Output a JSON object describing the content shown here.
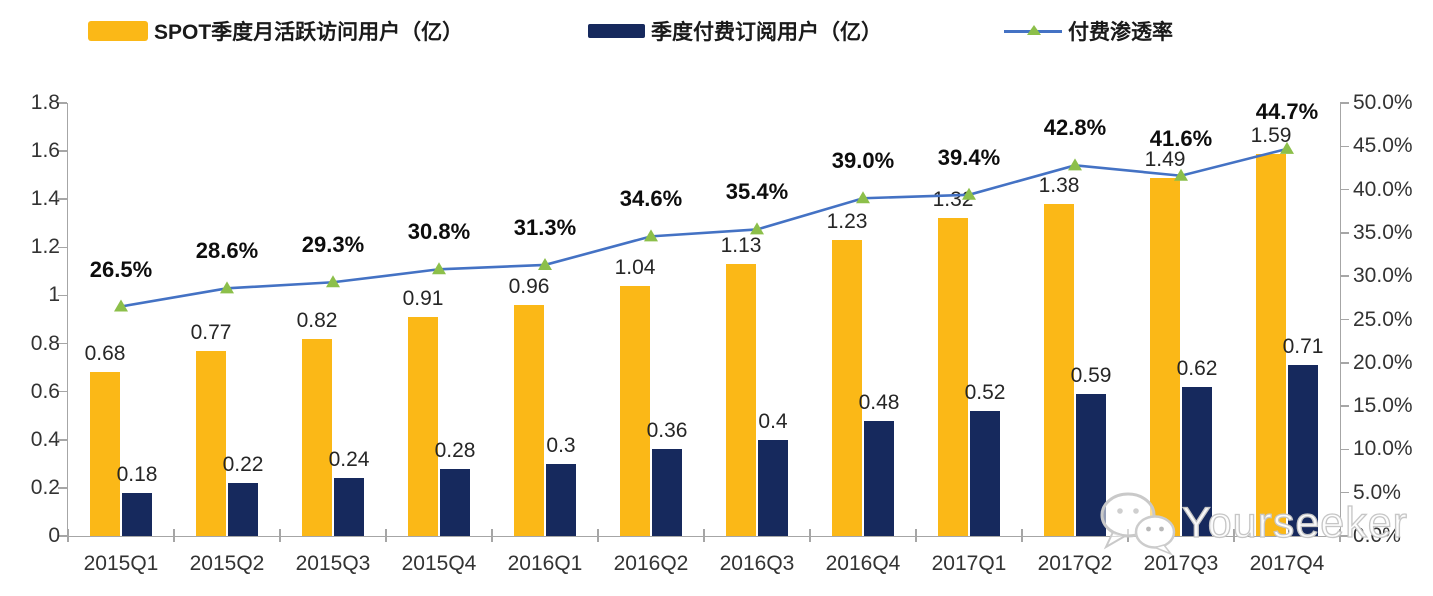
{
  "legend": {
    "mau_label": "SPOT季度月活跃访问用户（亿）",
    "paid_label": "季度付费订阅用户（亿）",
    "penetration_label": "付费渗透率"
  },
  "watermark": {
    "text": "Yourseeker",
    "icon": "wechat-icon"
  },
  "colors": {
    "mau_bar": "#FBB817",
    "paid_bar": "#16295D",
    "penetration_line": "#4472C4",
    "penetration_marker": "#8CBF4A",
    "axis": "#a6a6a6"
  },
  "chart_data": {
    "type": "combo",
    "subtype": "grouped-bars-with-line",
    "categories": [
      "2015Q1",
      "2015Q2",
      "2015Q3",
      "2015Q4",
      "2016Q1",
      "2016Q2",
      "2016Q3",
      "2016Q4",
      "2017Q1",
      "2017Q2",
      "2017Q3",
      "2017Q4"
    ],
    "series": [
      {
        "name": "SPOT季度月活跃访问用户（亿）",
        "type": "bar",
        "axis": "left",
        "color": "#FBB817",
        "values": [
          0.68,
          0.77,
          0.82,
          0.91,
          0.96,
          1.04,
          1.13,
          1.23,
          1.32,
          1.38,
          1.49,
          1.59
        ],
        "labels": [
          "0.68",
          "0.77",
          "0.82",
          "0.91",
          "0.96",
          "1.04",
          "1.13",
          "1.23",
          "1.32",
          "1.38",
          "1.49",
          "1.59"
        ]
      },
      {
        "name": "季度付费订阅用户（亿）",
        "type": "bar",
        "axis": "left",
        "color": "#16295D",
        "values": [
          0.18,
          0.22,
          0.24,
          0.28,
          0.3,
          0.36,
          0.4,
          0.48,
          0.52,
          0.59,
          0.62,
          0.71
        ],
        "labels": [
          "0.18",
          "0.22",
          "0.24",
          "0.28",
          "0.3",
          "0.36",
          "0.4",
          "0.48",
          "0.52",
          "0.59",
          "0.62",
          "0.71"
        ]
      },
      {
        "name": "付费渗透率",
        "type": "line",
        "axis": "right",
        "color": "#4472C4",
        "marker": "triangle",
        "marker_color": "#8CBF4A",
        "values": [
          26.5,
          28.6,
          29.3,
          30.8,
          31.3,
          34.6,
          35.4,
          39.0,
          39.4,
          42.8,
          41.6,
          44.7
        ],
        "labels": [
          "26.5%",
          "28.6%",
          "29.3%",
          "30.8%",
          "31.3%",
          "34.6%",
          "35.4%",
          "39.0%",
          "39.4%",
          "42.8%",
          "41.6%",
          "44.7%"
        ]
      }
    ],
    "left_axis": {
      "min": 0,
      "max": 1.8,
      "tick_step": 0.2,
      "ticks": [
        "0",
        "0.2",
        "0.4",
        "0.6",
        "0.8",
        "1",
        "1.2",
        "1.4",
        "1.6",
        "1.8"
      ]
    },
    "right_axis": {
      "min": 0,
      "max": 50,
      "tick_step": 5,
      "ticks": [
        "0.0%",
        "5.0%",
        "10.0%",
        "15.0%",
        "20.0%",
        "25.0%",
        "30.0%",
        "35.0%",
        "40.0%",
        "45.0%",
        "50.0%"
      ]
    },
    "title": "",
    "grid": false,
    "legend_position": "top"
  }
}
